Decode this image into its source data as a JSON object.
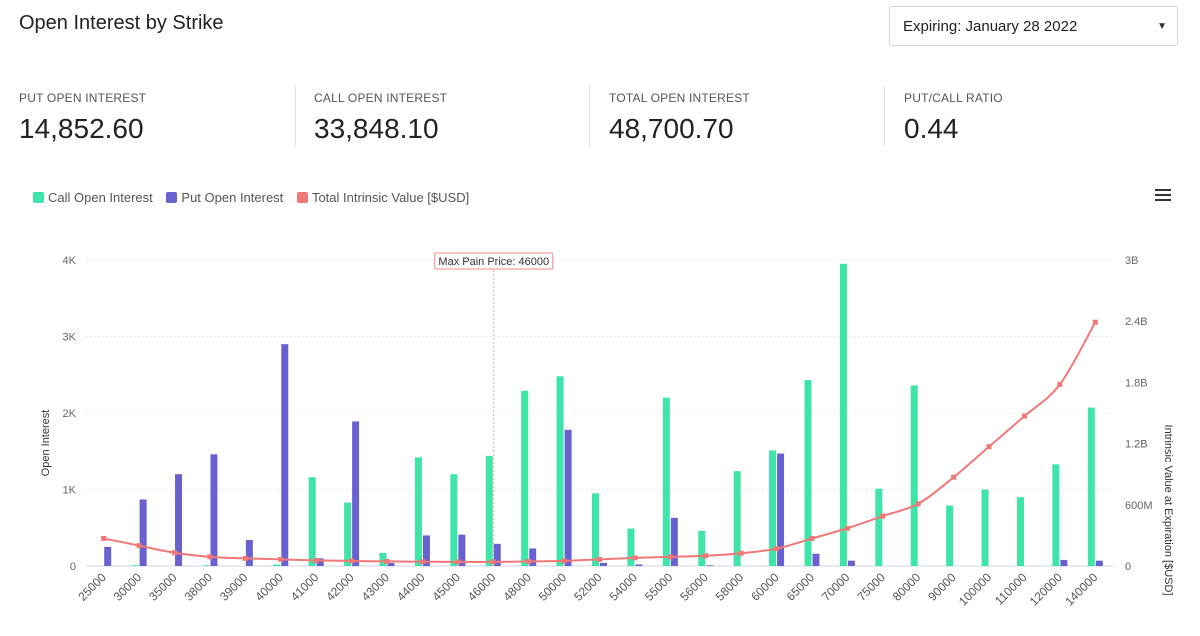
{
  "header": {
    "title": "Open Interest by Strike",
    "expiry_label": "Expiring: January 28 2022"
  },
  "stats": [
    {
      "label": "PUT OPEN INTEREST",
      "value": "14,852.60"
    },
    {
      "label": "CALL OPEN INTEREST",
      "value": "33,848.10"
    },
    {
      "label": "TOTAL OPEN INTEREST",
      "value": "48,700.70"
    },
    {
      "label": "PUT/CALL RATIO",
      "value": "0.44"
    }
  ],
  "colors": {
    "call": "#3ee4a8",
    "put": "#6a61d1",
    "intrinsic": "#f07878"
  },
  "chart_data": {
    "type": "bar",
    "legend": [
      "Call Open Interest",
      "Put Open Interest",
      "Total Intrinsic Value [$USD]"
    ],
    "categories": [
      "25000",
      "30000",
      "35000",
      "38000",
      "39000",
      "40000",
      "41000",
      "42000",
      "43000",
      "44000",
      "45000",
      "46000",
      "48000",
      "50000",
      "52000",
      "54000",
      "55000",
      "56000",
      "58000",
      "60000",
      "65000",
      "70000",
      "75000",
      "80000",
      "90000",
      "100000",
      "110000",
      "120000",
      "140000"
    ],
    "series": [
      {
        "name": "Call Open Interest",
        "axis": "left",
        "values": [
          0,
          10,
          0,
          10,
          0,
          20,
          1160,
          830,
          170,
          1420,
          1200,
          1440,
          2290,
          2480,
          950,
          490,
          2200,
          460,
          1240,
          1510,
          2430,
          3950,
          1010,
          2360,
          790,
          1000,
          900,
          1330,
          2070
        ]
      },
      {
        "name": "Put Open Interest",
        "axis": "left",
        "values": [
          250,
          870,
          1200,
          1460,
          340,
          2900,
          100,
          1890,
          40,
          400,
          410,
          290,
          230,
          1780,
          40,
          20,
          630,
          10,
          0,
          1470,
          160,
          70,
          0,
          0,
          0,
          0,
          0,
          80,
          70
        ]
      },
      {
        "name": "Total Intrinsic Value [$USD]",
        "type": "line",
        "axis": "right",
        "values": [
          270000000,
          200000000,
          130000000,
          90000000,
          75000000,
          65000000,
          55000000,
          50000000,
          45000000,
          42000000,
          40000000,
          40000000,
          45000000,
          50000000,
          65000000,
          80000000,
          90000000,
          100000000,
          125000000,
          170000000,
          270000000,
          370000000,
          490000000,
          610000000,
          870000000,
          1170000000,
          1470000000,
          1780000000,
          2390000000
        ]
      }
    ],
    "ylabel": "Open Interest",
    "y2label": "Intrinsic Value at Expiration [$USD]",
    "ylim": [
      0,
      4000
    ],
    "y_ticks": [
      "0",
      "1K",
      "2K",
      "3K",
      "4K"
    ],
    "y2lim": [
      0,
      3000000000
    ],
    "y2_ticks": [
      "0",
      "600M",
      "1.2B",
      "1.8B",
      "2.4B",
      "3B"
    ],
    "annotation": {
      "label": "Max Pain Price: 46000",
      "category": "46000"
    },
    "grid": true
  }
}
